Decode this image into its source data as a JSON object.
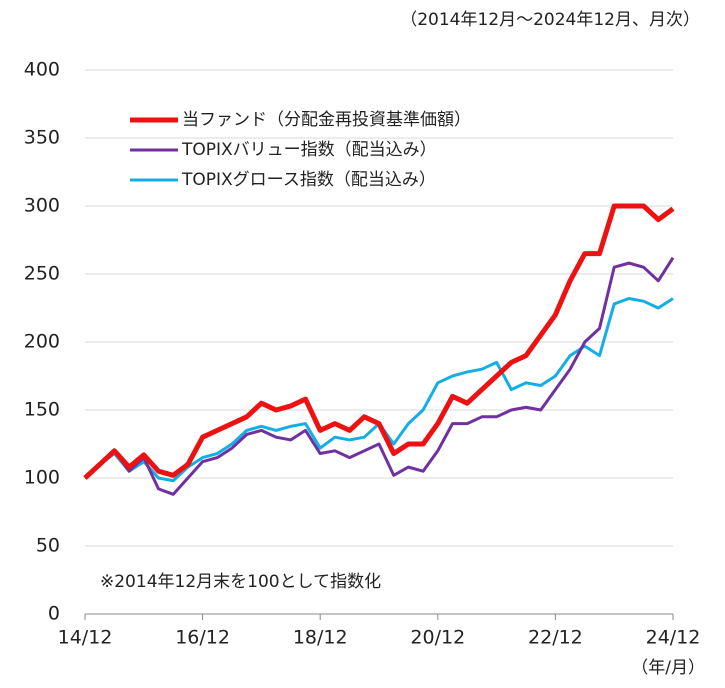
{
  "chart_data": {
    "type": "line",
    "subtitle": "（2014年12月～2024年12月、月次）",
    "note": "※2014年12月末を100として指数化",
    "x_label": "（年/月）",
    "categories": [
      "14/12",
      null,
      null,
      null,
      null,
      null,
      null,
      null,
      "16/12",
      null,
      null,
      null,
      null,
      null,
      null,
      null,
      "18/12",
      null,
      null,
      null,
      null,
      null,
      null,
      null,
      "20/12",
      null,
      null,
      null,
      null,
      null,
      null,
      null,
      "22/12",
      null,
      null,
      null,
      null,
      null,
      null,
      null,
      "24/12"
    ],
    "series": [
      {
        "name": "当ファンド（分配金再投資基準価額）",
        "color": "#ee1111",
        "width": 5,
        "values": [
          100,
          110,
          120,
          108,
          117,
          105,
          102,
          110,
          130,
          135,
          140,
          145,
          155,
          150,
          153,
          158,
          135,
          140,
          135,
          145,
          140,
          118,
          125,
          125,
          140,
          160,
          155,
          165,
          175,
          185,
          190,
          205,
          220,
          245,
          265,
          265,
          300,
          300,
          300,
          290,
          298
        ]
      },
      {
        "name": "TOPIXバリュー指数（配当込み）",
        "color": "#7030a0",
        "width": 3,
        "values": [
          100,
          110,
          120,
          105,
          115,
          92,
          88,
          100,
          112,
          115,
          122,
          132,
          135,
          130,
          128,
          135,
          118,
          120,
          115,
          120,
          125,
          102,
          108,
          105,
          120,
          140,
          140,
          145,
          145,
          150,
          152,
          150,
          165,
          180,
          200,
          210,
          255,
          258,
          255,
          245,
          262
        ]
      },
      {
        "name": "TOPIXグロース指数（配当込み）",
        "color": "#13aee8",
        "width": 3,
        "values": [
          100,
          110,
          118,
          105,
          112,
          100,
          98,
          108,
          115,
          118,
          125,
          135,
          138,
          135,
          138,
          140,
          122,
          130,
          128,
          130,
          140,
          125,
          140,
          150,
          170,
          175,
          178,
          180,
          185,
          165,
          170,
          168,
          175,
          190,
          197,
          190,
          228,
          232,
          230,
          225,
          232
        ]
      }
    ],
    "ylim": [
      0,
      400
    ],
    "yticks": [
      0,
      50,
      100,
      150,
      200,
      250,
      300,
      350,
      400
    ],
    "grid": true
  }
}
